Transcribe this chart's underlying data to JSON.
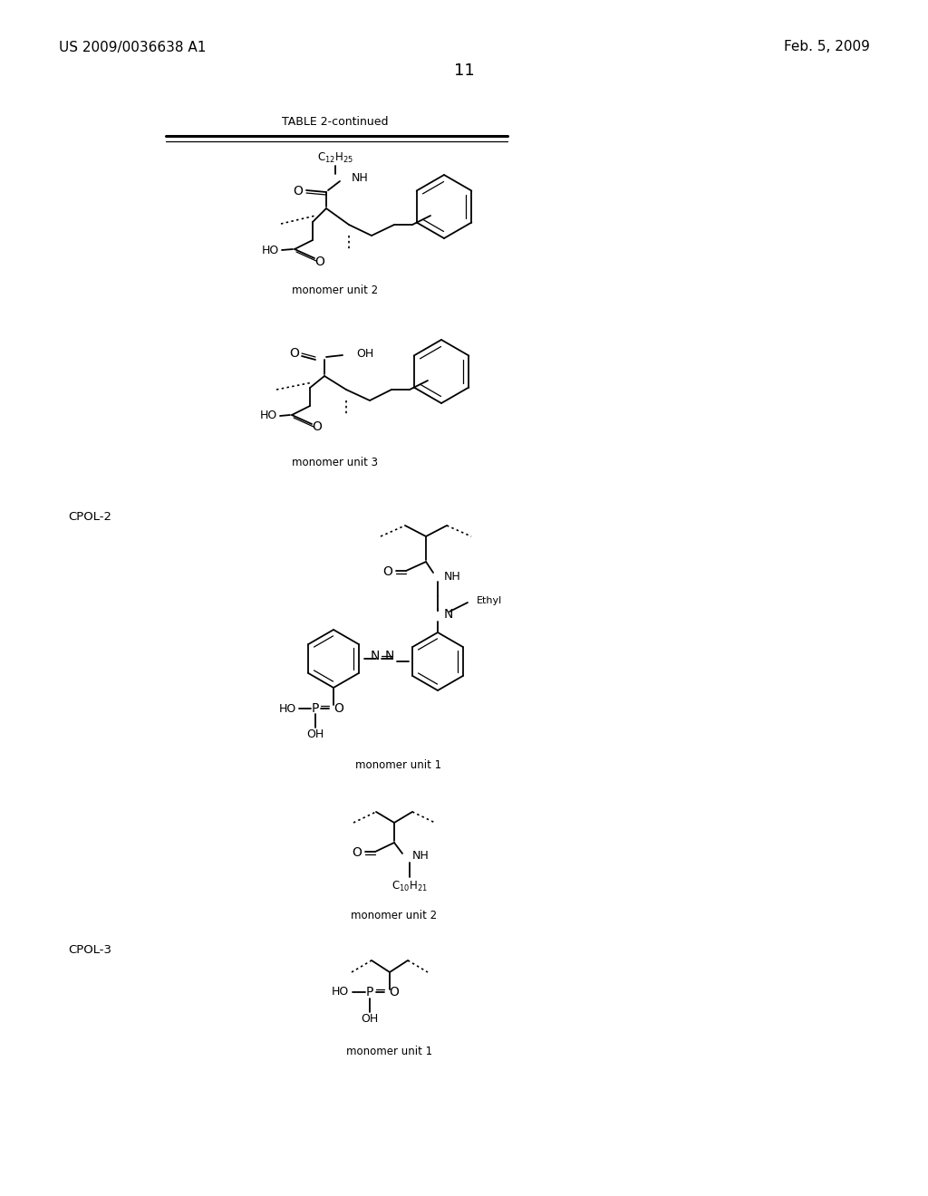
{
  "bg": "#ffffff",
  "header_left": "US 2009/0036638 A1",
  "header_right": "Feb. 5, 2009",
  "page_num": "11",
  "table_title": "TABLE 2-continued"
}
